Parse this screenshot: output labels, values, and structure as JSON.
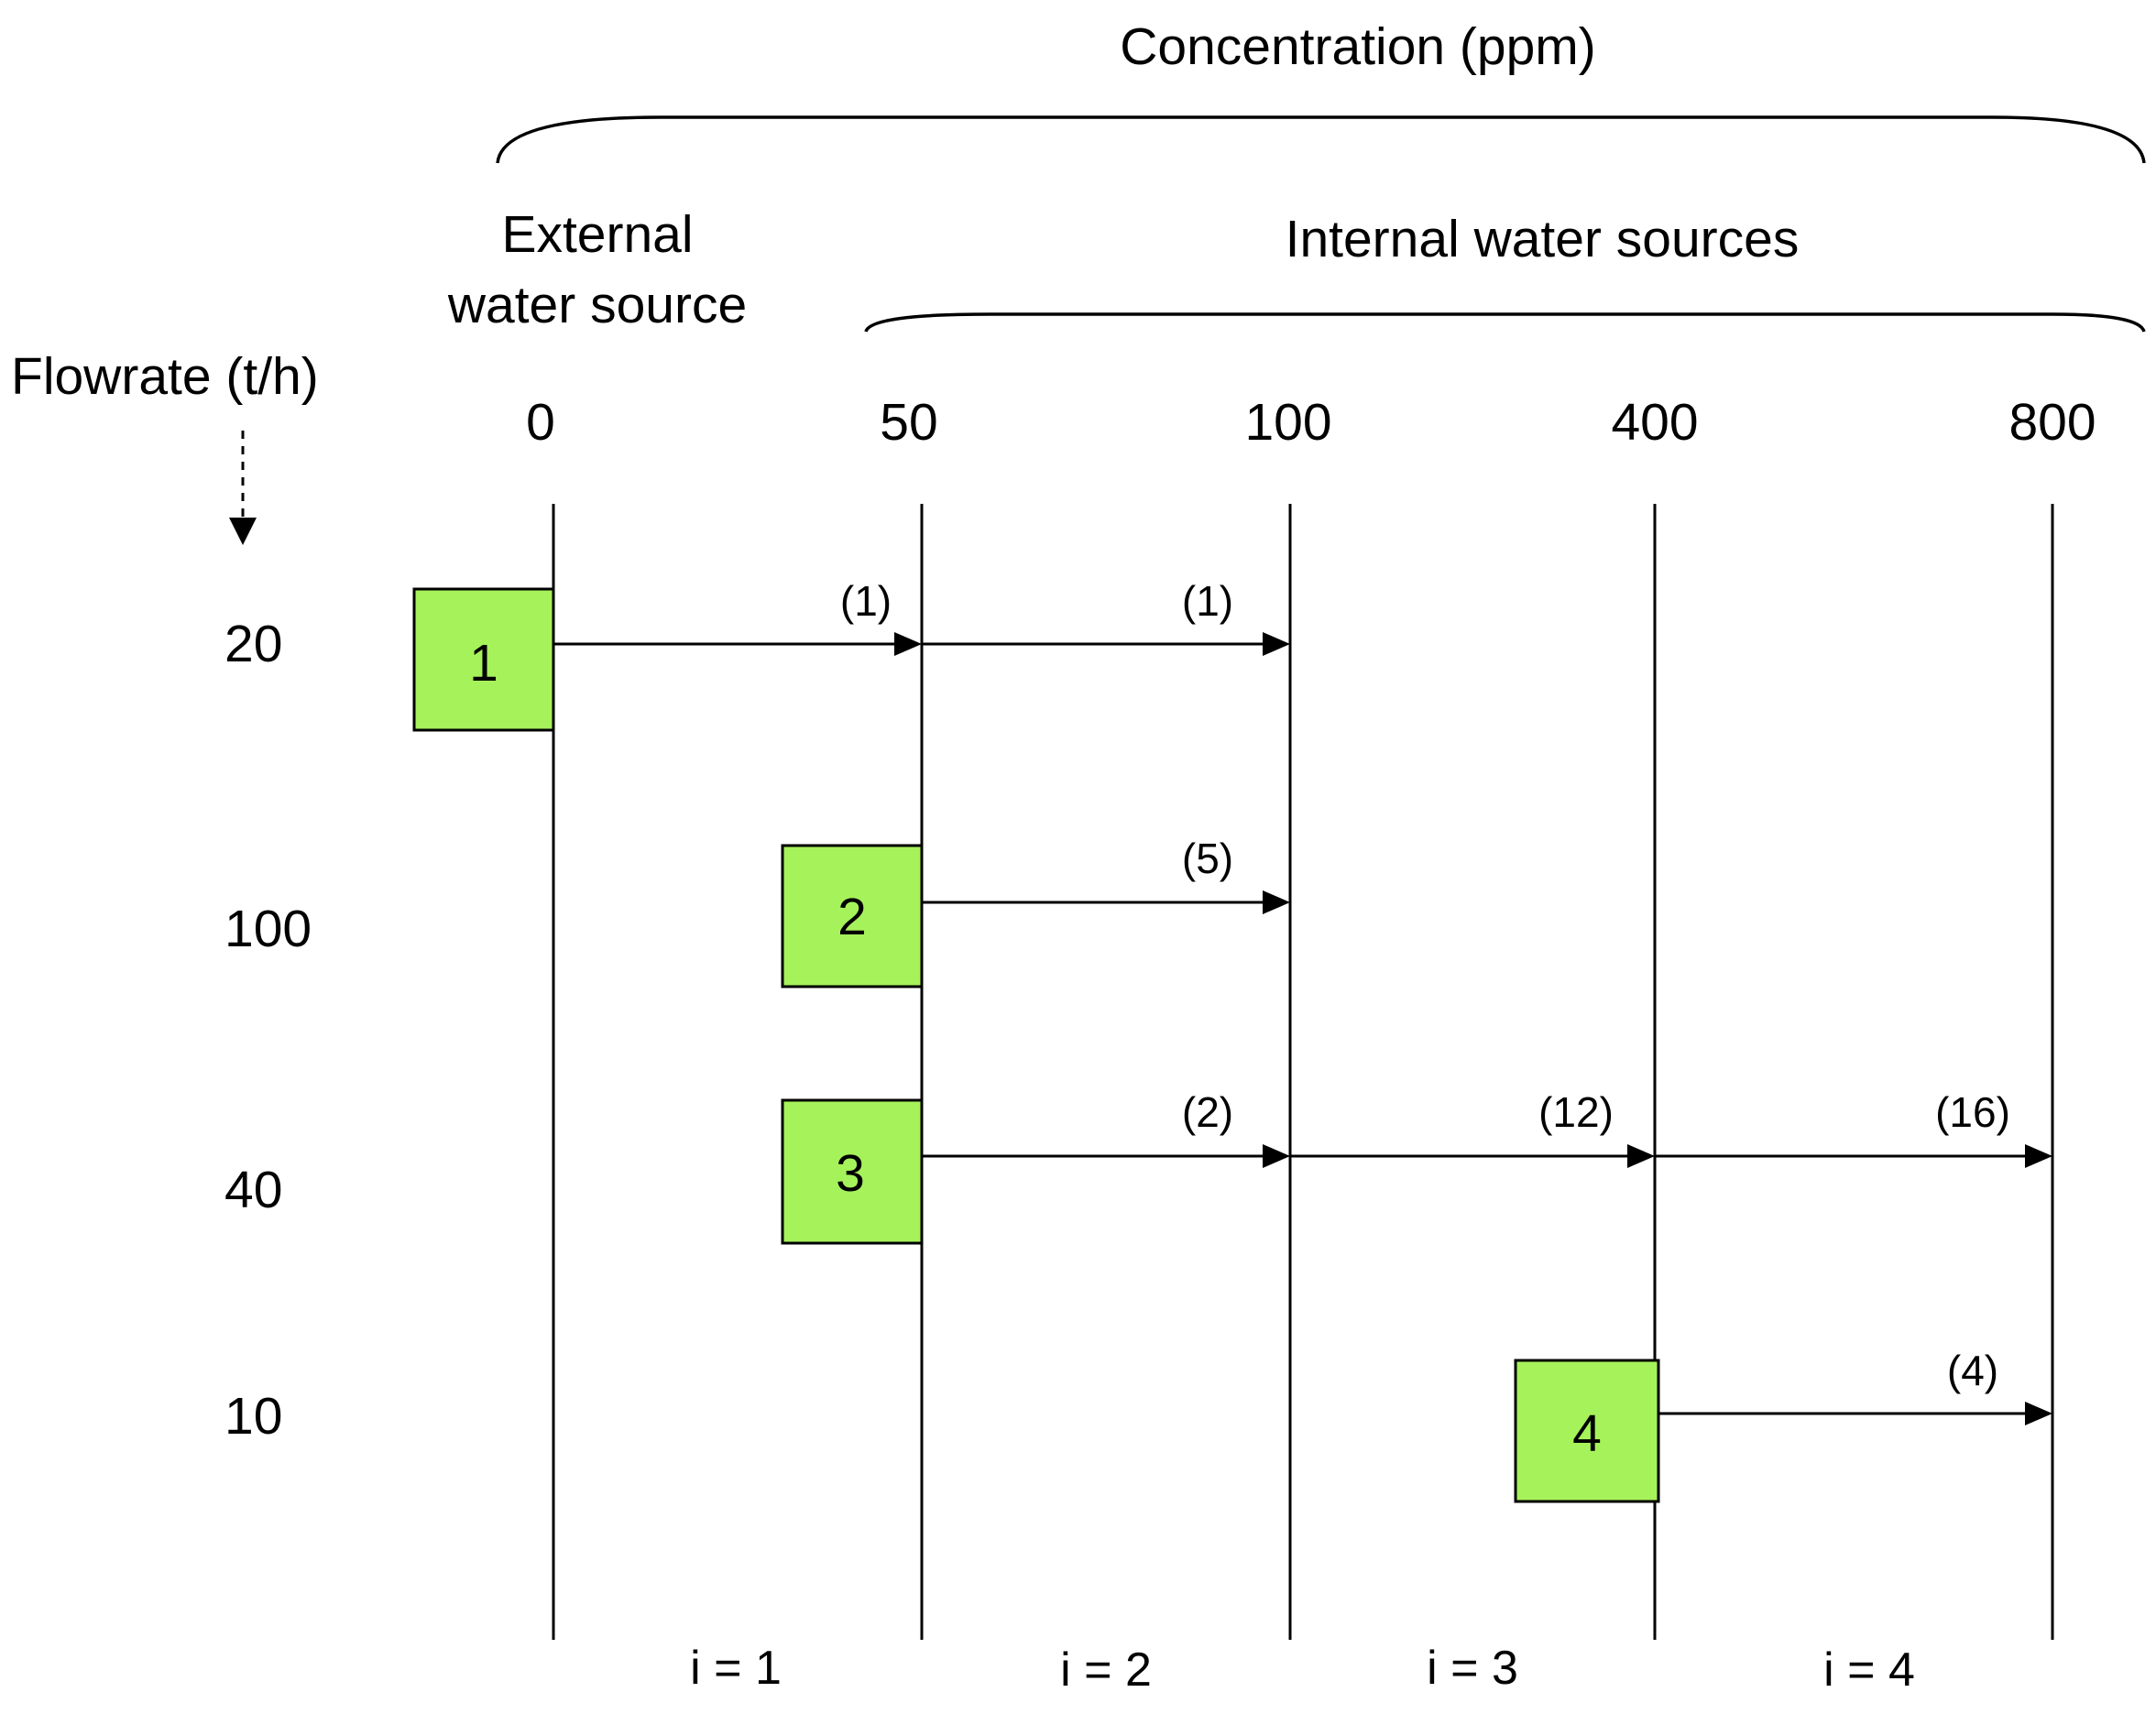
{
  "header": {
    "concentration_label": "Concentration (ppm)",
    "external_label_line1": "External",
    "external_label_line2": "water source",
    "internal_label": "Internal water sources",
    "flowrate_label": "Flowrate (t/h)"
  },
  "concentrations": [
    "0",
    "50",
    "100",
    "400",
    "800"
  ],
  "sources": [
    {
      "id": "1",
      "flowrate": "20",
      "start_conc": "0"
    },
    {
      "id": "2",
      "flowrate": "100",
      "start_conc": "50"
    },
    {
      "id": "3",
      "flowrate": "40",
      "start_conc": "50"
    },
    {
      "id": "4",
      "flowrate": "10",
      "start_conc": "400"
    }
  ],
  "arrows": [
    {
      "source": "1",
      "from": "0",
      "to": "50",
      "label": "(1)"
    },
    {
      "source": "1",
      "from": "50",
      "to": "100",
      "label": "(1)"
    },
    {
      "source": "2",
      "from": "50",
      "to": "100",
      "label": "(5)"
    },
    {
      "source": "3",
      "from": "50",
      "to": "100",
      "label": "(2)"
    },
    {
      "source": "3",
      "from": "100",
      "to": "400",
      "label": "(12)"
    },
    {
      "source": "3",
      "from": "400",
      "to": "800",
      "label": "(16)"
    },
    {
      "source": "4",
      "from": "400",
      "to": "800",
      "label": "(4)"
    }
  ],
  "intervals": [
    "i = 1",
    "i = 2",
    "i = 3",
    "i = 4"
  ],
  "colors": {
    "box_fill": "#a6f25a",
    "line": "#000000"
  }
}
